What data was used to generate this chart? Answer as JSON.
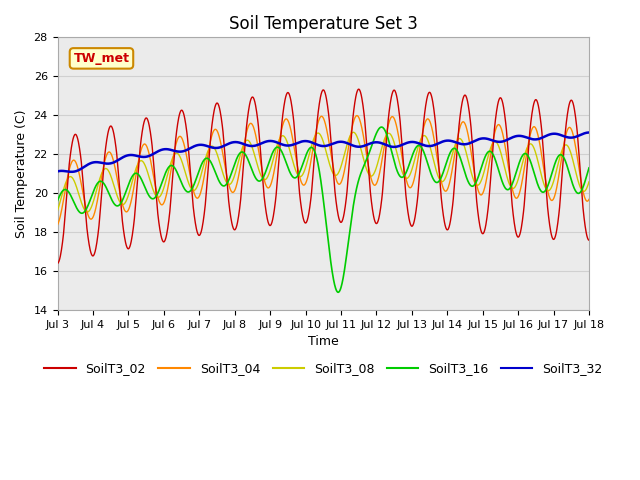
{
  "title": "Soil Temperature Set 3",
  "xlabel": "Time",
  "ylabel": "Soil Temperature (C)",
  "ylim": [
    14,
    28
  ],
  "yticks": [
    14,
    16,
    18,
    20,
    22,
    24,
    26,
    28
  ],
  "xtick_labels": [
    "Jul 3",
    "Jul 4",
    "Jul 5",
    "Jul 6",
    "Jul 7",
    "Jul 8",
    "Jul 9",
    "Jul 10",
    "Jul 11",
    "Jul 12",
    "Jul 13",
    "Jul 14",
    "Jul 15",
    "Jul 16",
    "Jul 17",
    "Jul 18"
  ],
  "annotation_text": "TW_met",
  "colors": {
    "SoilT3_02": "#cc0000",
    "SoilT3_04": "#ff8800",
    "SoilT3_08": "#cccc00",
    "SoilT3_16": "#00cc00",
    "SoilT3_32": "#0000cc"
  },
  "plot_bg_color": "#ebebeb",
  "title_fontsize": 12,
  "axis_fontsize": 9,
  "tick_fontsize": 8,
  "legend_fontsize": 9
}
